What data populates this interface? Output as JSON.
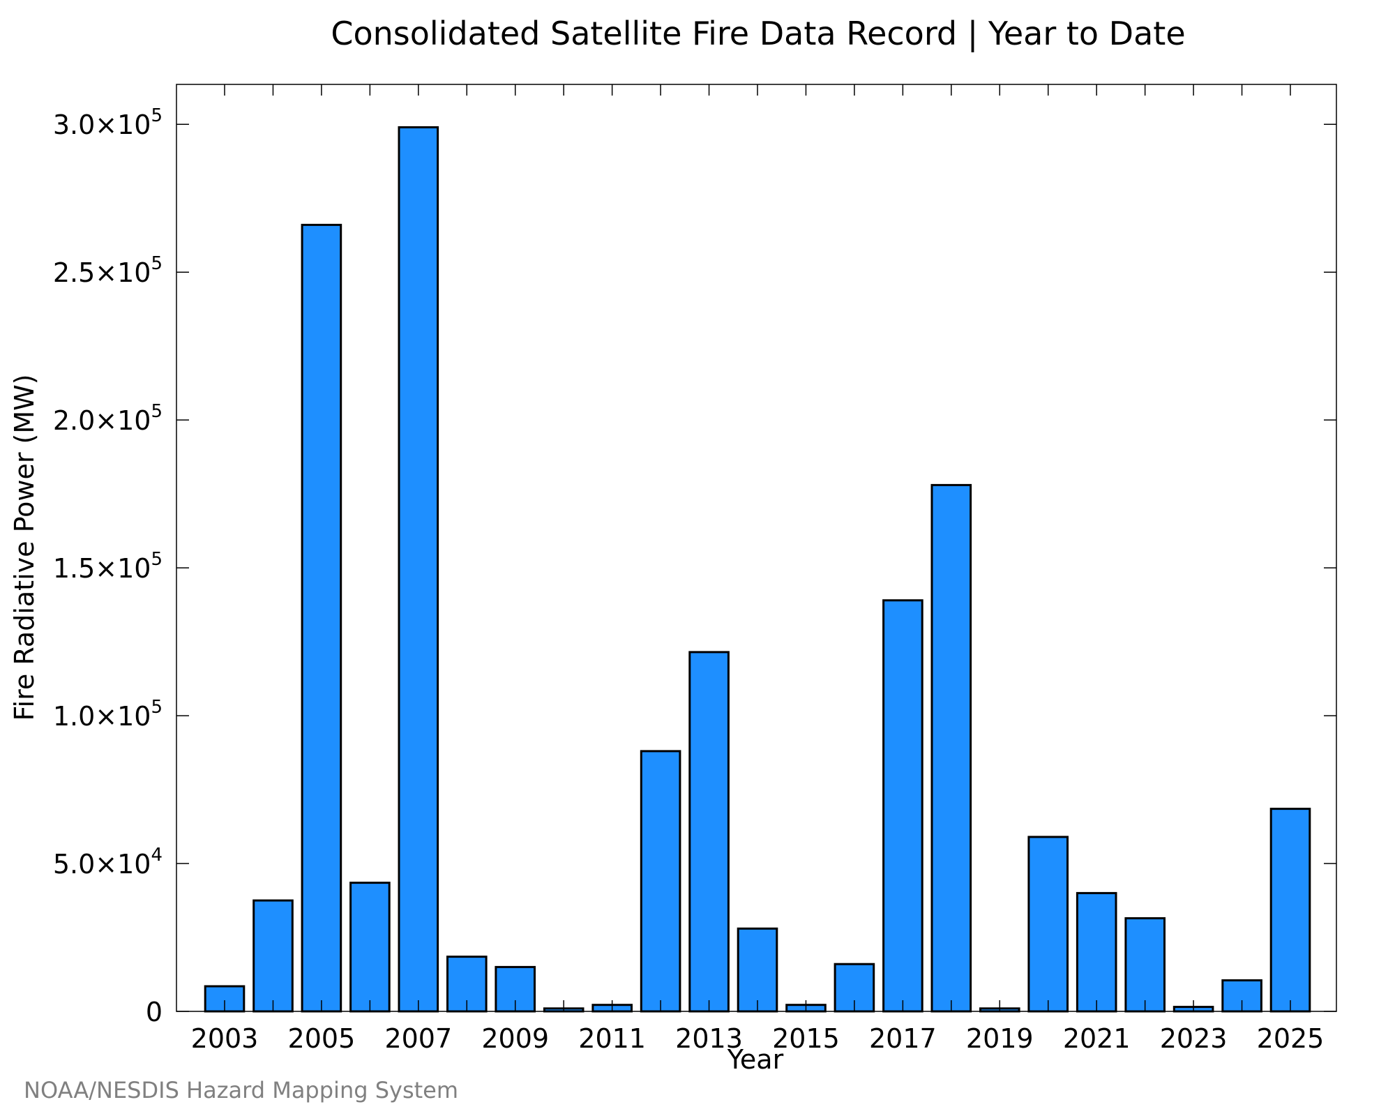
{
  "chart_data": {
    "type": "bar",
    "title": "Consolidated Satellite Fire Data Record | Year to Date",
    "xlabel": "Year",
    "ylabel": "Fire Radiative Power (MW)",
    "categories": [
      "2003",
      "2004",
      "2005",
      "2006",
      "2007",
      "2008",
      "2009",
      "2010",
      "2011",
      "2012",
      "2013",
      "2014",
      "2015",
      "2016",
      "2017",
      "2018",
      "2019",
      "2020",
      "2021",
      "2022",
      "2023",
      "2024",
      "2025"
    ],
    "values": [
      8500,
      37500,
      266000,
      43500,
      299000,
      18500,
      15000,
      1000,
      2200,
      88000,
      121500,
      28000,
      2200,
      16000,
      139000,
      178000,
      1000,
      59000,
      40000,
      31500,
      1500,
      10500,
      68500
    ],
    "x_tick_labels": [
      "2003",
      "2005",
      "2007",
      "2009",
      "2011",
      "2013",
      "2015",
      "2017",
      "2019",
      "2021",
      "2023",
      "2025"
    ],
    "y_ticks": [
      {
        "value": 0,
        "mantissa": "0",
        "exp": ""
      },
      {
        "value": 50000,
        "mantissa": "5.0×10",
        "exp": "4"
      },
      {
        "value": 100000,
        "mantissa": "1.0×10",
        "exp": "5"
      },
      {
        "value": 150000,
        "mantissa": "1.5×10",
        "exp": "5"
      },
      {
        "value": 200000,
        "mantissa": "2.0×10",
        "exp": "5"
      },
      {
        "value": 250000,
        "mantissa": "2.5×10",
        "exp": "5"
      },
      {
        "value": 300000,
        "mantissa": "3.0×10",
        "exp": "5"
      }
    ],
    "ylim": [
      0,
      313500
    ],
    "bar_color": "#1e8fff",
    "grid": false,
    "legend": "none"
  },
  "credit": "NOAA/NESDIS Hazard Mapping System"
}
